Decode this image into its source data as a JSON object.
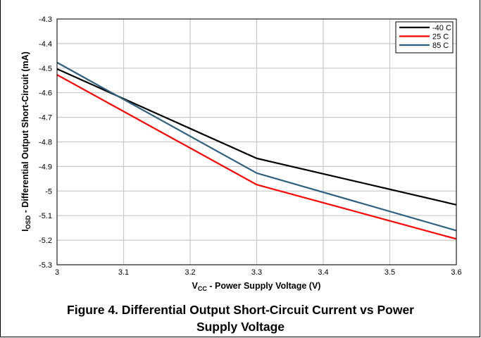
{
  "chart_data": {
    "type": "line",
    "title": "",
    "xlabel_main": "V",
    "xlabel_sub": "CC",
    "xlabel_rest": " - Power Supply Voltage (V)",
    "ylabel_main": "I",
    "ylabel_sub": "OSD",
    "ylabel_rest": " - Differential Output Short-Circuit (mA)",
    "xlim": [
      3,
      3.6
    ],
    "ylim": [
      -5.3,
      -4.3
    ],
    "xticks": [
      "3",
      "3.1",
      "3.2",
      "3.3",
      "3.4",
      "3.5",
      "3.6"
    ],
    "yticks": [
      "-4.3",
      "-4.4",
      "-4.5",
      "-4.6",
      "-4.7",
      "-4.8",
      "-4.9",
      "-5",
      "-5.1",
      "-5.2",
      "-5.3"
    ],
    "grid": true,
    "legend_position": "top-right",
    "series": [
      {
        "name": "-40 C",
        "color": "#000000",
        "x": [
          3,
          3.3,
          3.6
        ],
        "y": [
          -4.503,
          -4.867,
          -5.056
        ]
      },
      {
        "name": "25 C",
        "color": "#ff0000",
        "x": [
          3,
          3.3,
          3.6
        ],
        "y": [
          -4.527,
          -4.974,
          -5.195
        ]
      },
      {
        "name": "85 C",
        "color": "#2e6080",
        "x": [
          3,
          3.3,
          3.6
        ],
        "y": [
          -4.477,
          -4.927,
          -5.161
        ]
      }
    ]
  },
  "caption": {
    "line1": "Figure 4. Differential Output Short-Circuit Current vs Power",
    "line2": "Supply Voltage"
  }
}
